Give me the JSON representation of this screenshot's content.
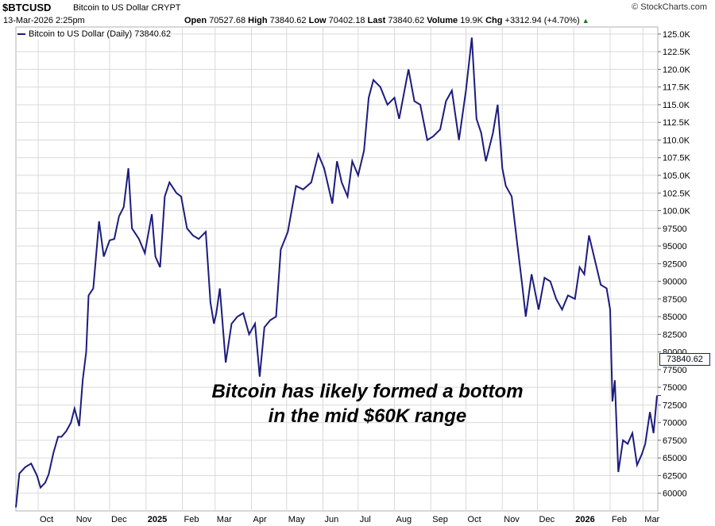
{
  "header": {
    "symbol": "$BTCUSD",
    "description": "Bitcoin to US Dollar",
    "exchange": "CRYPT",
    "brand": "© StockCharts.com",
    "date": "13-Mar-2026 2:25pm",
    "open_label": "Open",
    "open": "70527.68",
    "high_label": "High",
    "high": "73840.62",
    "low_label": "Low",
    "low": "70402.18",
    "last_label": "Last",
    "last": "73840.62",
    "volume_label": "Volume",
    "volume": "19.9K",
    "chg_label": "Chg",
    "chg": "+3312.94 (+4.70%)"
  },
  "legend": {
    "label": "Bitcoin to US Dollar (Daily) 73840.62"
  },
  "annotation": {
    "line1": "Bitcoin has likely formed a bottom",
    "line2": "in the mid $60K range"
  },
  "last_tag": "73840.62",
  "colors": {
    "line": "#1c1c7e",
    "grid": "#d9d9d9",
    "up": "#1a7a1a"
  },
  "chart_data": {
    "type": "line",
    "series": [
      {
        "name": "Bitcoin to US Dollar (Daily)",
        "x": [
          "2024-09-12",
          "2024-09-15",
          "2024-09-20",
          "2024-09-25",
          "2024-09-30",
          "2024-10-03",
          "2024-10-07",
          "2024-10-10",
          "2024-10-14",
          "2024-10-18",
          "2024-10-21",
          "2024-10-25",
          "2024-10-29",
          "2024-11-01",
          "2024-11-05",
          "2024-11-08",
          "2024-11-11",
          "2024-11-13",
          "2024-11-17",
          "2024-11-22",
          "2024-11-26",
          "2024-12-01",
          "2024-12-05",
          "2024-12-09",
          "2024-12-13",
          "2024-12-17",
          "2024-12-20",
          "2024-12-26",
          "2024-12-31",
          "2025-01-06",
          "2025-01-09",
          "2025-01-13",
          "2025-01-17",
          "2025-01-21",
          "2025-01-27",
          "2025-01-31",
          "2025-02-05",
          "2025-02-10",
          "2025-02-15",
          "2025-02-21",
          "2025-02-25",
          "2025-02-28",
          "2025-03-02",
          "2025-03-05",
          "2025-03-10",
          "2025-03-15",
          "2025-03-20",
          "2025-03-25",
          "2025-03-30",
          "2025-04-04",
          "2025-04-08",
          "2025-04-12",
          "2025-04-17",
          "2025-04-22",
          "2025-04-26",
          "2025-05-02",
          "2025-05-09",
          "2025-05-15",
          "2025-05-22",
          "2025-05-28",
          "2025-06-02",
          "2025-06-09",
          "2025-06-13",
          "2025-06-17",
          "2025-06-22",
          "2025-06-26",
          "2025-07-01",
          "2025-07-06",
          "2025-07-10",
          "2025-07-14",
          "2025-07-20",
          "2025-07-26",
          "2025-08-01",
          "2025-08-05",
          "2025-08-09",
          "2025-08-13",
          "2025-08-18",
          "2025-08-23",
          "2025-08-29",
          "2025-09-03",
          "2025-09-09",
          "2025-09-14",
          "2025-09-19",
          "2025-09-25",
          "2025-10-01",
          "2025-10-06",
          "2025-10-10",
          "2025-10-14",
          "2025-10-18",
          "2025-10-24",
          "2025-10-28",
          "2025-11-01",
          "2025-11-04",
          "2025-11-09",
          "2025-11-14",
          "2025-11-18",
          "2025-11-21",
          "2025-11-26",
          "2025-12-02",
          "2025-12-07",
          "2025-12-12",
          "2025-12-17",
          "2025-12-22",
          "2025-12-27",
          "2026-01-02",
          "2026-01-06",
          "2026-01-10",
          "2026-01-14",
          "2026-01-19",
          "2026-01-24",
          "2026-01-29",
          "2026-02-01",
          "2026-02-03",
          "2026-02-05",
          "2026-02-08",
          "2026-02-12",
          "2026-02-16",
          "2026-02-20",
          "2026-02-24",
          "2026-02-28",
          "2026-03-03",
          "2026-03-07",
          "2026-03-10",
          "2026-03-13"
        ],
        "y": [
          58000,
          62800,
          63700,
          64200,
          62500,
          60800,
          61500,
          62700,
          65700,
          68000,
          68000,
          68800,
          70000,
          72000,
          69500,
          76000,
          80000,
          88000,
          89000,
          98500,
          93500,
          95800,
          96000,
          99200,
          100500,
          106000,
          97500,
          96000,
          94000,
          99500,
          93500,
          92000,
          102000,
          104000,
          102500,
          102000,
          97500,
          96500,
          96000,
          97000,
          87000,
          84000,
          85500,
          89000,
          78500,
          84000,
          85000,
          85500,
          82500,
          84000,
          76500,
          83500,
          84500,
          85000,
          94500,
          97000,
          103500,
          103000,
          104000,
          108000,
          106000,
          101000,
          107000,
          104000,
          102000,
          107000,
          105000,
          108500,
          116000,
          118500,
          117500,
          115000,
          116000,
          113000,
          116500,
          120000,
          115500,
          115000,
          110000,
          110500,
          111500,
          115500,
          117000,
          110000,
          117000,
          124500,
          113000,
          111000,
          107000,
          111000,
          115000,
          106000,
          103500,
          102000,
          95000,
          89500,
          85000,
          91000,
          86000,
          90500,
          90000,
          87500,
          86000,
          88000,
          87500,
          92000,
          91000,
          96500,
          93000,
          89500,
          89000,
          86000,
          73000,
          76000,
          63000,
          67500,
          67000,
          68500,
          64000,
          65500,
          67000,
          71500,
          68500,
          73840.62
        ]
      }
    ],
    "x_ticks": [
      "Oct",
      "Nov",
      "Dec",
      "2025",
      "Feb",
      "Mar",
      "Apr",
      "May",
      "Jun",
      "Jul",
      "Aug",
      "Sep",
      "Oct",
      "Nov",
      "Dec",
      "2026",
      "Feb",
      "Mar"
    ],
    "y_ticks": [
      "60000",
      "62500",
      "65000",
      "67500",
      "70000",
      "72500",
      "75000",
      "77500",
      "80000",
      "82500",
      "85000",
      "87500",
      "90000",
      "92500",
      "95000",
      "97500",
      "100.0K",
      "102.5K",
      "105.0K",
      "107.5K",
      "110.0K",
      "112.5K",
      "115.0K",
      "117.5K",
      "120.0K",
      "122.5K",
      "125.0K"
    ],
    "ylim": [
      57500,
      126000
    ],
    "grid": true,
    "legend_position": "top-left"
  }
}
